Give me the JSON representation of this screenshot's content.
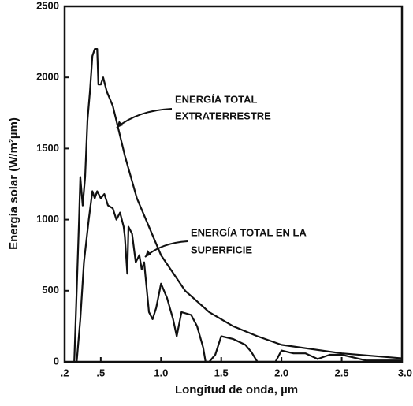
{
  "chart_data": {
    "type": "line",
    "x_label": "Longitud de onda, µm",
    "y_label": "Energía solar (W/m²µm)",
    "annotations": [
      {
        "lines": [
          "ENERGÍA TOTAL",
          "EXTRATERRESTRE"
        ]
      },
      {
        "lines": [
          "ENERGÍA TOTAL EN LA",
          "SUPERFICIE"
        ]
      }
    ],
    "xlim": [
      0.2,
      3.0
    ],
    "ylim": [
      0,
      2500
    ],
    "xticks": [
      {
        "value": 0.2,
        "label": ".2"
      },
      {
        "value": 0.5,
        "label": ".5"
      },
      {
        "value": 1,
        "label": "1.0"
      },
      1.5,
      {
        "value": 2,
        "label": "2.0"
      },
      2.5,
      {
        "value": 3,
        "label": "3.0"
      }
    ],
    "yticks": [
      0,
      500,
      1000,
      1500,
      2000,
      2500
    ],
    "grid": false,
    "series": [
      {
        "color": "#111111",
        "x": [
          0.28,
          0.3,
          0.32,
          0.33,
          0.35,
          0.37,
          0.39,
          0.41,
          0.43,
          0.45,
          0.47,
          0.48,
          0.5,
          0.52,
          0.55,
          0.6,
          0.7,
          0.8,
          0.9,
          1.0,
          1.2,
          1.4,
          1.6,
          1.8,
          2.0,
          2.5,
          3.0
        ],
        "values": [
          0,
          500,
          1000,
          1300,
          1100,
          1300,
          1700,
          1900,
          2150,
          2200,
          2200,
          1950,
          1950,
          2000,
          1900,
          1800,
          1450,
          1150,
          950,
          750,
          500,
          350,
          250,
          180,
          120,
          60,
          25
        ]
      },
      {
        "color": "#111111",
        "x": [
          0.3,
          0.33,
          0.36,
          0.4,
          0.43,
          0.45,
          0.47,
          0.5,
          0.53,
          0.56,
          0.6,
          0.63,
          0.66,
          0.69,
          0.7,
          0.72,
          0.73,
          0.76,
          0.79,
          0.82,
          0.84,
          0.86,
          0.9,
          0.93,
          0.96,
          1.0,
          1.05,
          1.1,
          1.13,
          1.17,
          1.25,
          1.3,
          1.35,
          1.37,
          1.4,
          1.45,
          1.5,
          1.6,
          1.7,
          1.75,
          1.8,
          1.95,
          2.0,
          2.1,
          2.2,
          2.3,
          2.4,
          2.5,
          2.6,
          2.7,
          3.0
        ],
        "values": [
          0,
          300,
          700,
          1000,
          1200,
          1150,
          1200,
          1150,
          1180,
          1100,
          1080,
          1000,
          1050,
          950,
          880,
          620,
          950,
          900,
          700,
          750,
          650,
          700,
          350,
          300,
          380,
          550,
          450,
          300,
          180,
          350,
          330,
          250,
          100,
          0,
          0,
          50,
          180,
          160,
          120,
          70,
          0,
          0,
          80,
          60,
          60,
          20,
          50,
          50,
          30,
          10,
          10
        ]
      }
    ]
  }
}
